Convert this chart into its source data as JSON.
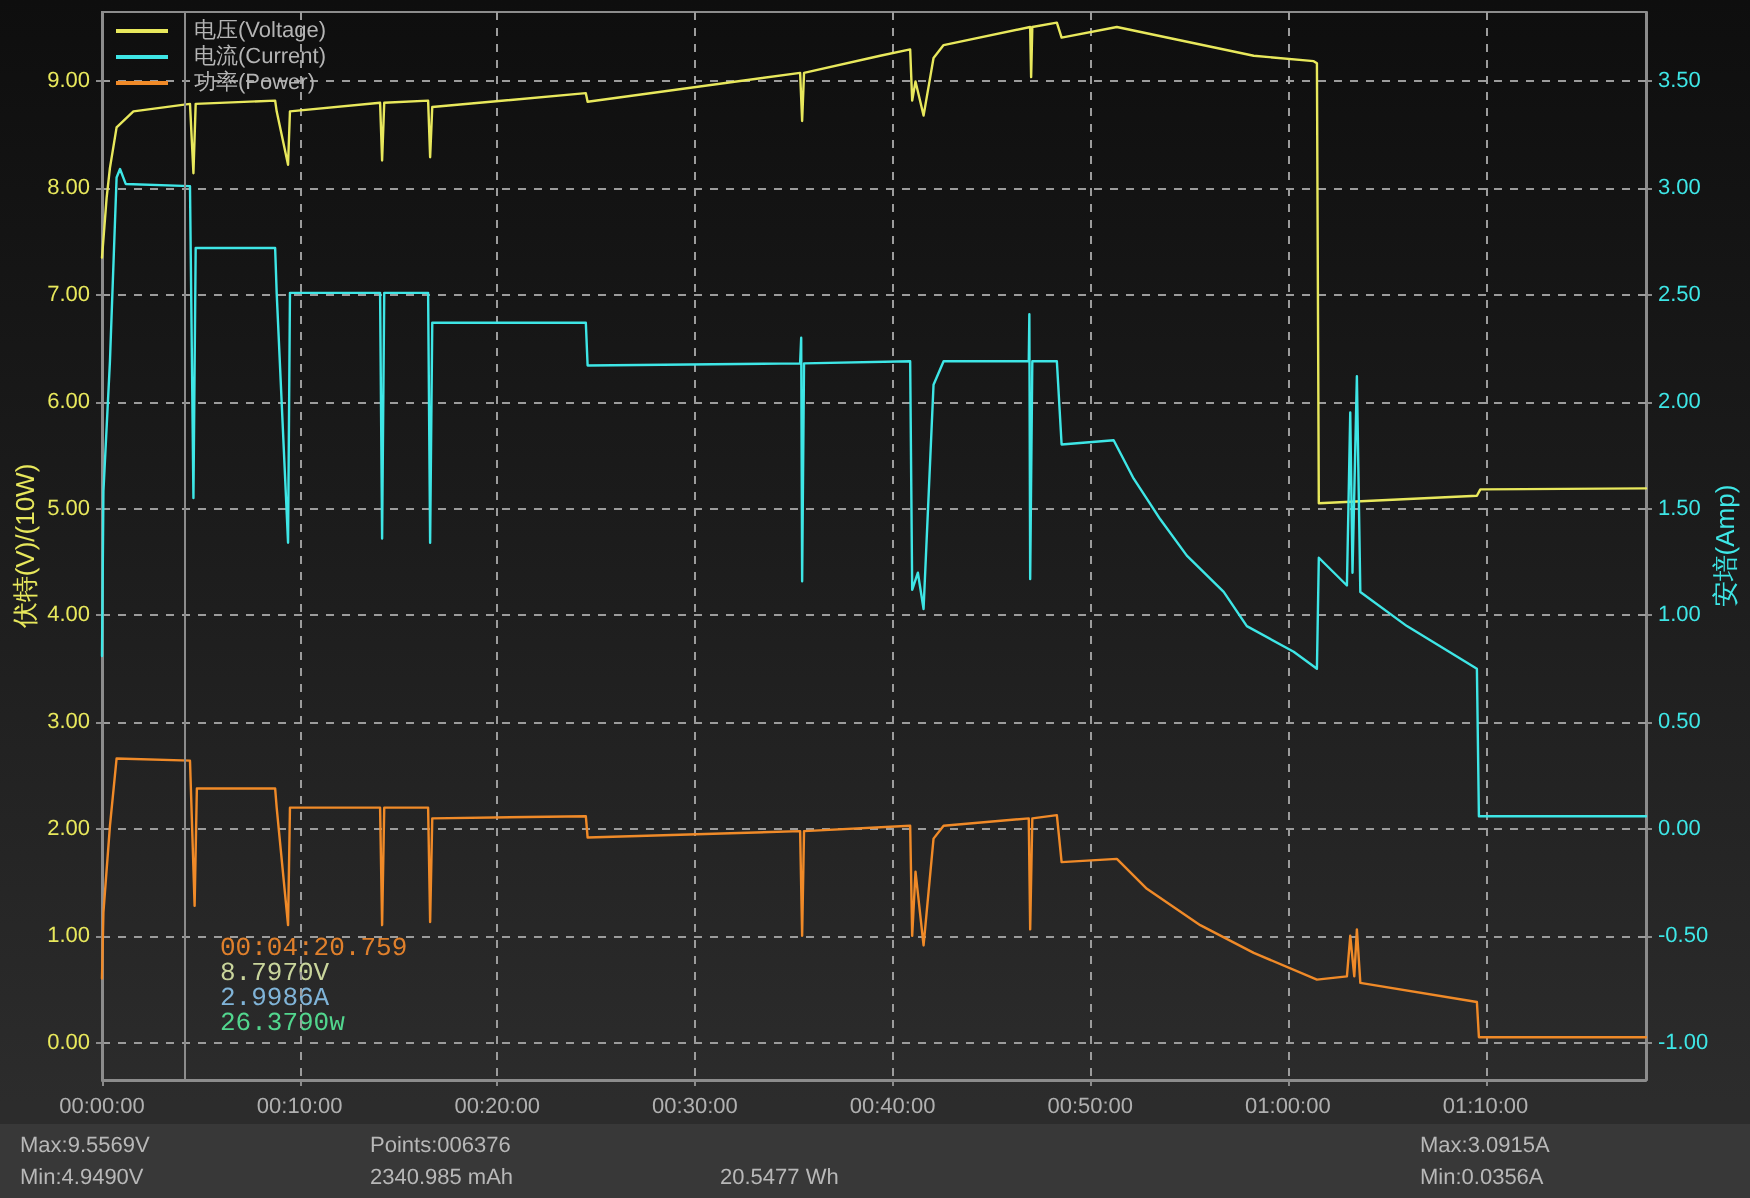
{
  "chart_data": {
    "type": "line",
    "ylabel": "伏特(V)/(10W)",
    "y2label": "安培(Amp)",
    "xlim": [
      0,
      1.302
    ],
    "xticks": [
      {
        "value": 0,
        "label": "00:00:00"
      },
      {
        "value": 0.16667,
        "label": "00:10:00"
      },
      {
        "value": 0.33333,
        "label": "00:20:00"
      },
      {
        "value": 0.5,
        "label": "00:30:00"
      },
      {
        "value": 0.66667,
        "label": "00:40:00"
      },
      {
        "value": 0.83333,
        "label": "00:50:00"
      },
      {
        "value": 1,
        "label": "01:00:00"
      },
      {
        "value": 1.16667,
        "label": "01:10:00"
      }
    ],
    "ylim": [
      -0.35,
      9.65
    ],
    "yticks": [
      {
        "value": 0,
        "label": "0.00"
      },
      {
        "value": 1,
        "label": "1.00"
      },
      {
        "value": 2,
        "label": "2.00"
      },
      {
        "value": 3,
        "label": "3.00"
      },
      {
        "value": 4,
        "label": "4.00"
      },
      {
        "value": 5,
        "label": "5.00"
      },
      {
        "value": 6,
        "label": "6.00"
      },
      {
        "value": 7,
        "label": "7.00"
      },
      {
        "value": 8,
        "label": "8.00"
      },
      {
        "value": 9,
        "label": "9.00"
      }
    ],
    "y2lim": [
      -1.175,
      3.825
    ],
    "y2ticks": [
      {
        "value": -1,
        "label": "-1.00"
      },
      {
        "value": -0.5,
        "label": "-0.50"
      },
      {
        "value": 0,
        "label": "0.00"
      },
      {
        "value": 0.5,
        "label": "0.50"
      },
      {
        "value": 1,
        "label": "1.00"
      },
      {
        "value": 1.5,
        "label": "1.50"
      },
      {
        "value": 2,
        "label": "2.00"
      },
      {
        "value": 2.5,
        "label": "2.50"
      },
      {
        "value": 3,
        "label": "3.00"
      },
      {
        "value": 3.5,
        "label": "3.50"
      }
    ],
    "grid": true,
    "legend": "top left",
    "marker": "none",
    "line_style": "solid",
    "series": [
      {
        "name": "电压(Voltage)",
        "color": "#e8e85c",
        "x": [
          0,
          0.0039,
          0.0067,
          0.0123,
          0.0265,
          0.0742,
          0.0771,
          0.079,
          0.146,
          0.1473,
          0.1569,
          0.1585,
          0.2345,
          0.2362,
          0.238,
          0.275,
          0.2767,
          0.2785,
          0.408,
          0.4095,
          0.5887,
          0.5904,
          0.592,
          0.6562,
          0.6815,
          0.6832,
          0.686,
          0.6928,
          0.7012,
          0.7097,
          0.7827,
          0.7835,
          0.7845,
          0.8052,
          0.8092,
          0.8558,
          0.9712,
          1.0218,
          1.0245,
          1.0261,
          1.1594,
          1.1623,
          1.302
        ],
        "values": [
          7.35,
          7.91,
          8.19,
          8.57,
          8.72,
          8.79,
          8.14,
          8.79,
          8.82,
          8.72,
          8.22,
          8.72,
          8.8,
          8.26,
          8.8,
          8.82,
          8.29,
          8.76,
          8.89,
          8.81,
          9.08,
          8.63,
          9.08,
          9.24,
          9.3,
          8.82,
          9.0,
          8.68,
          9.22,
          9.34,
          9.51,
          9.04,
          9.51,
          9.55,
          9.41,
          9.51,
          9.24,
          9.19,
          9.17,
          5.05,
          5.12,
          5.18,
          5.19
        ]
      },
      {
        "name": "电流(Current)",
        "color": "#3ee6e6",
        "axis": "y2",
        "x": [
          0,
          0.0012,
          0.0067,
          0.0123,
          0.0152,
          0.02,
          0.0742,
          0.0771,
          0.079,
          0.146,
          0.1473,
          0.1569,
          0.1585,
          0.2345,
          0.2362,
          0.238,
          0.275,
          0.2767,
          0.2785,
          0.408,
          0.4095,
          0.5887,
          0.5896,
          0.5904,
          0.592,
          0.6815,
          0.6832,
          0.688,
          0.6928,
          0.7012,
          0.7097,
          0.7815,
          0.782,
          0.7827,
          0.7845,
          0.8052,
          0.8092,
          0.8531,
          0.87,
          0.8924,
          0.9148,
          0.9459,
          0.9654,
          1.0049,
          1.0245,
          1.0261,
          1.0498,
          1.0526,
          1.0545,
          1.0582,
          1.0611,
          1.1004,
          1.1594,
          1.1611,
          1.302
        ],
        "values": [
          0.81,
          1.58,
          2.19,
          3.05,
          3.09,
          3.02,
          3.01,
          1.55,
          2.72,
          2.72,
          2.51,
          1.34,
          2.51,
          2.51,
          1.36,
          2.51,
          2.51,
          1.34,
          2.37,
          2.37,
          2.17,
          2.18,
          2.3,
          1.16,
          2.18,
          2.19,
          1.12,
          1.2,
          1.03,
          2.08,
          2.19,
          2.19,
          2.41,
          1.17,
          2.19,
          2.19,
          1.8,
          1.82,
          1.64,
          1.45,
          1.28,
          1.11,
          0.95,
          0.83,
          0.75,
          1.27,
          1.14,
          1.95,
          1.2,
          2.12,
          1.11,
          0.95,
          0.75,
          0.06,
          0.06
        ]
      },
      {
        "name": "功率(Power)",
        "color": "#f08a28",
        "x": [
          0,
          0.0012,
          0.0067,
          0.0123,
          0.0742,
          0.0781,
          0.08,
          0.146,
          0.1473,
          0.1569,
          0.1585,
          0.2345,
          0.2362,
          0.238,
          0.275,
          0.2767,
          0.2785,
          0.408,
          0.4095,
          0.5887,
          0.5904,
          0.592,
          0.6815,
          0.6832,
          0.686,
          0.6928,
          0.7012,
          0.7097,
          0.7815,
          0.7827,
          0.7845,
          0.8052,
          0.8092,
          0.8558,
          0.8811,
          0.9261,
          0.9712,
          1.0245,
          1.0498,
          1.0526,
          1.056,
          1.0582,
          1.0611,
          1.1594,
          1.1611,
          1.302
        ],
        "values": [
          0.6,
          1.22,
          2.03,
          2.66,
          2.64,
          1.28,
          2.38,
          2.38,
          2.2,
          1.1,
          2.2,
          2.2,
          1.1,
          2.2,
          2.2,
          1.13,
          2.1,
          2.12,
          1.92,
          1.98,
          1.0,
          1.98,
          2.03,
          1.0,
          1.6,
          0.91,
          1.91,
          2.03,
          2.1,
          1.06,
          2.1,
          2.13,
          1.69,
          1.72,
          1.44,
          1.1,
          0.84,
          0.59,
          0.62,
          1.0,
          0.62,
          1.06,
          0.56,
          0.38,
          0.05,
          0.05
        ]
      }
    ],
    "ref_lines": [
      {
        "axis": "x",
        "value": 0.07243,
        "color": "#8c8c8c"
      }
    ],
    "annotations": [
      "00:04:20.759",
      "8.7970V",
      "2.9986A",
      "26.3790w",
      "Max:9.5569V",
      "Min:4.9490V",
      "Points:006376",
      "2340.985 mAh",
      "20.5477 Wh",
      "Max:3.0915A",
      "Min:0.0356A"
    ]
  }
}
